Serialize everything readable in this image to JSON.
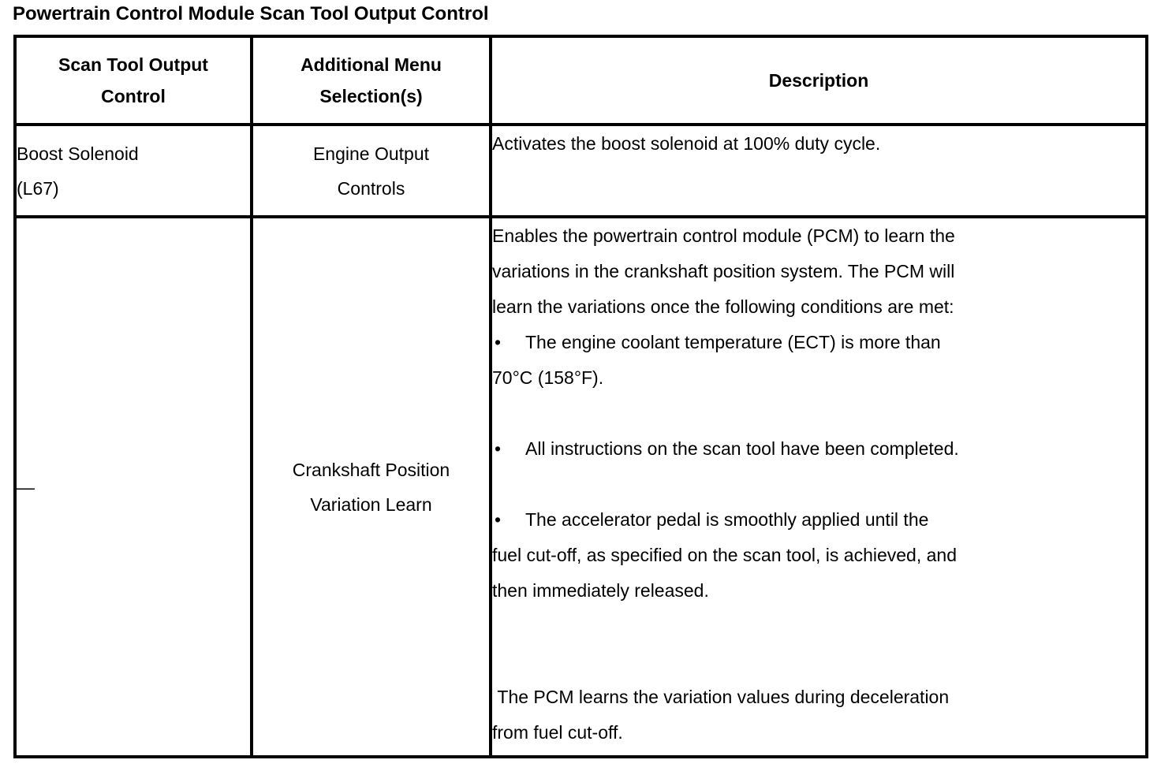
{
  "title": "Powertrain Control Module Scan Tool Output Control",
  "bullet_char": "•",
  "colors": {
    "text": "#000000",
    "background": "#ffffff",
    "border": "#000000"
  },
  "table": {
    "columns": [
      {
        "id": "scan-tool-output-control",
        "label": "Scan Tool Output Control",
        "lines": [
          "Scan Tool Output",
          "Control"
        ]
      },
      {
        "id": "additional-menu-selections",
        "label": "Additional Menu Selection(s)",
        "lines": [
          "Additional Menu",
          "Selection(s)"
        ]
      },
      {
        "id": "description",
        "label": "Description",
        "lines": [
          "Description"
        ]
      }
    ],
    "rows": [
      {
        "scan_tool_output_control": "Boost Solenoid (L67)",
        "scan_tool_output_control_lines": [
          "Boost Solenoid",
          "(L67)"
        ],
        "additional_menu_selections": "Engine Output Controls",
        "additional_menu_lines": [
          "Engine Output",
          "Controls"
        ],
        "description_lines": [
          {
            "type": "text",
            "text": "Activates the boost solenoid at 100% duty cycle."
          }
        ]
      },
      {
        "scan_tool_output_control": "—",
        "scan_tool_output_control_lines": [
          "—"
        ],
        "additional_menu_selections": "Crankshaft Position Variation Learn",
        "additional_menu_lines": [
          "Crankshaft Position",
          "Variation Learn"
        ],
        "description_lines": [
          {
            "type": "text",
            "text": "Enables the powertrain control module (PCM) to learn the"
          },
          {
            "type": "text",
            "text": "variations in the crankshaft position system. The PCM will"
          },
          {
            "type": "text",
            "text": "learn the variations once the following conditions are met:"
          },
          {
            "type": "bullet",
            "text": "The engine coolant temperature (ECT) is more than"
          },
          {
            "type": "text",
            "text": "70°C (158°F)."
          },
          {
            "type": "gap",
            "text": ""
          },
          {
            "type": "bullet",
            "text": "All instructions on the scan tool have been completed."
          },
          {
            "type": "gap",
            "text": ""
          },
          {
            "type": "bullet",
            "text": "The accelerator pedal is smoothly applied until the"
          },
          {
            "type": "text",
            "text": "fuel cut-off, as specified on the scan tool, is achieved, and"
          },
          {
            "type": "text",
            "text": "then immediately released."
          },
          {
            "type": "gap",
            "text": ""
          },
          {
            "type": "gap",
            "text": ""
          },
          {
            "type": "text",
            "text": " The PCM learns the variation values during deceleration"
          },
          {
            "type": "text",
            "text": "from fuel cut-off."
          }
        ]
      }
    ]
  }
}
